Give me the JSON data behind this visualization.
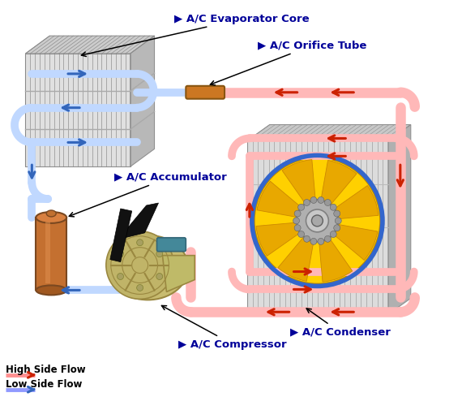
{
  "bg_color": "#ffffff",
  "label_color": "#000099",
  "high_flow_color": "#CC2200",
  "low_flow_color": "#3366BB",
  "high_pipe_color": "#FFB8B8",
  "low_pipe_color": "#C0D8FF",
  "evap_colors": {
    "front": "#e0e0e0",
    "top": "#cccccc",
    "side": "#b8b8b8"
  },
  "cond_colors": {
    "front": "#dcdcdc",
    "top": "#c8c8c8",
    "side": "#b0b0b0"
  },
  "accum_color": "#C47030",
  "fan_yellow": "#FFD000",
  "orifice_color": "#CC7722",
  "teal_color": "#448899",
  "comp_color": "#C8BC70",
  "labels": {
    "evaporator": "A/C Evaporator Core",
    "orifice": "A/C Orifice Tube",
    "accumulator": "A/C Accumulator",
    "condenser": "A/C Condenser",
    "compressor": "A/C Compressor",
    "high_flow": "High Side Flow",
    "low_flow": "Low Side Flow"
  }
}
